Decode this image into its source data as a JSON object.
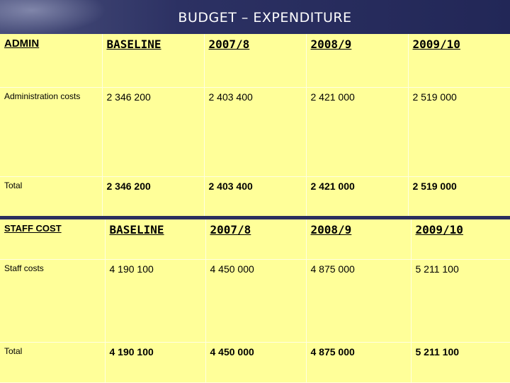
{
  "title": "BUDGET – EXPENDITURE",
  "admin_table": {
    "headers": [
      "ADMIN",
      "BASELINE",
      "2007/8",
      "2008/9",
      "2009/10"
    ],
    "rows": [
      {
        "label": "Administration costs",
        "values": [
          "2 346 200",
          "2 403 400",
          "2 421 000",
          "2 519 000"
        ]
      },
      {
        "label": "Total",
        "values": [
          "2 346 200",
          "2 403 400",
          "2 421 000",
          "2 519 000"
        ]
      }
    ]
  },
  "staff_table": {
    "headers": [
      "STAFF COST",
      "BASELINE",
      "2007/8",
      "2008/9",
      "2009/10"
    ],
    "rows": [
      {
        "label": "Staff costs",
        "values": [
          "4 190 100",
          "4 450 000",
          "4 875 000",
          "5 211 100"
        ]
      },
      {
        "label": "Total",
        "values": [
          "4 190 100",
          "4 450 000",
          "4 875 000",
          "5 211 100"
        ]
      }
    ]
  },
  "colors": {
    "table_bg": "#ffff99",
    "header_bg": "#262b5c",
    "title_text": "#ffffff"
  }
}
